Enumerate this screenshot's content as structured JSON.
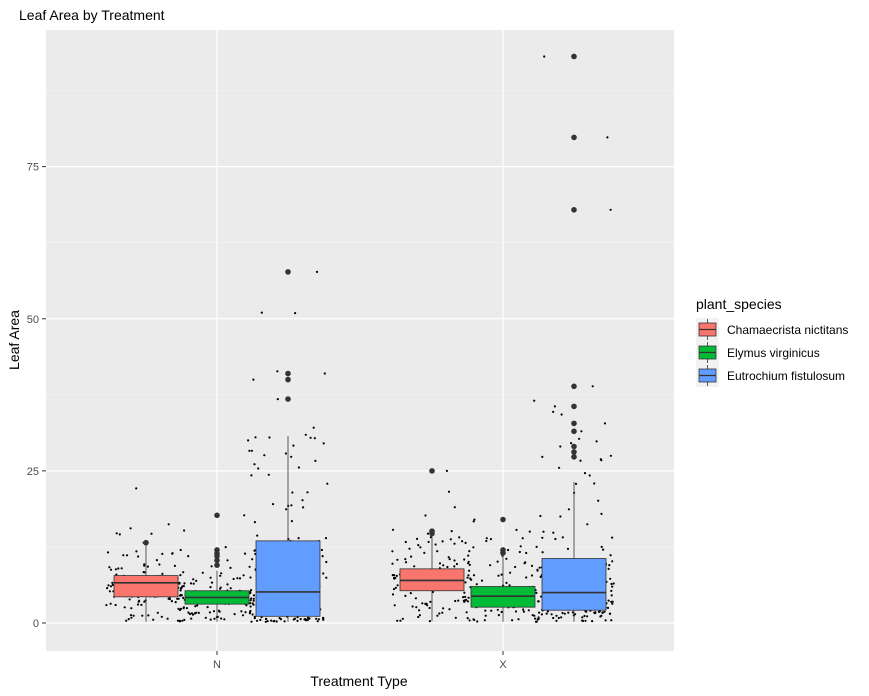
{
  "chart_data": {
    "type": "boxplot",
    "title": "Leaf Area by Treatment",
    "xlabel": "Treatment Type",
    "ylabel": "Leaf Area",
    "categories": [
      "N",
      "X"
    ],
    "ylim": [
      -4,
      97
    ],
    "yticks": [
      0,
      25,
      50,
      75
    ],
    "grid": true,
    "legend": {
      "title": "plant_species",
      "position": "right",
      "items": [
        {
          "label": "Chamaecrista nictitans",
          "color": "#F8766D"
        },
        {
          "label": "Elymus virginicus",
          "color": "#00BA38"
        },
        {
          "label": "Eutrochium fistulosum",
          "color": "#619CFF"
        }
      ]
    },
    "series": [
      {
        "name": "Chamaecrista nictitans",
        "color": "#F8766D",
        "boxes": [
          {
            "category": "N",
            "q1": 4.3,
            "median": 6.6,
            "q3": 7.8,
            "whisker_low": 0.2,
            "whisker_high": 12.9,
            "outliers": [
              13.2
            ]
          },
          {
            "category": "X",
            "q1": 5.3,
            "median": 7.0,
            "q3": 8.9,
            "whisker_low": 0.3,
            "whisker_high": 14.3,
            "outliers": [
              14.7,
              15.1,
              25.0
            ]
          }
        ]
      },
      {
        "name": "Elymus virginicus",
        "color": "#00BA38",
        "boxes": [
          {
            "category": "N",
            "q1": 3.1,
            "median": 4.2,
            "q3": 5.3,
            "whisker_low": 0.2,
            "whisker_high": 8.6,
            "outliers": [
              9.5,
              10.3,
              11.0,
              11.4,
              12.0,
              17.7
            ]
          },
          {
            "category": "X",
            "q1": 2.6,
            "median": 4.4,
            "q3": 6.0,
            "whisker_low": 0.2,
            "whisker_high": 10.9,
            "outliers": [
              11.5,
              12.0,
              17.0
            ]
          }
        ]
      },
      {
        "name": "Eutrochium fistulosum",
        "color": "#619CFF",
        "boxes": [
          {
            "category": "N",
            "q1": 1.1,
            "median": 5.1,
            "q3": 13.5,
            "whisker_low": 0.2,
            "whisker_high": 30.7,
            "outliers": [
              36.8,
              40.0,
              41.0,
              57.7
            ]
          },
          {
            "category": "X",
            "q1": 2.1,
            "median": 5.0,
            "q3": 10.6,
            "whisker_low": 0.2,
            "whisker_high": 23.2,
            "outliers": [
              27.3,
              28.1,
              29.0,
              31.5,
              32.8,
              35.6,
              38.9,
              67.9,
              79.8,
              93.1
            ]
          }
        ]
      }
    ]
  }
}
